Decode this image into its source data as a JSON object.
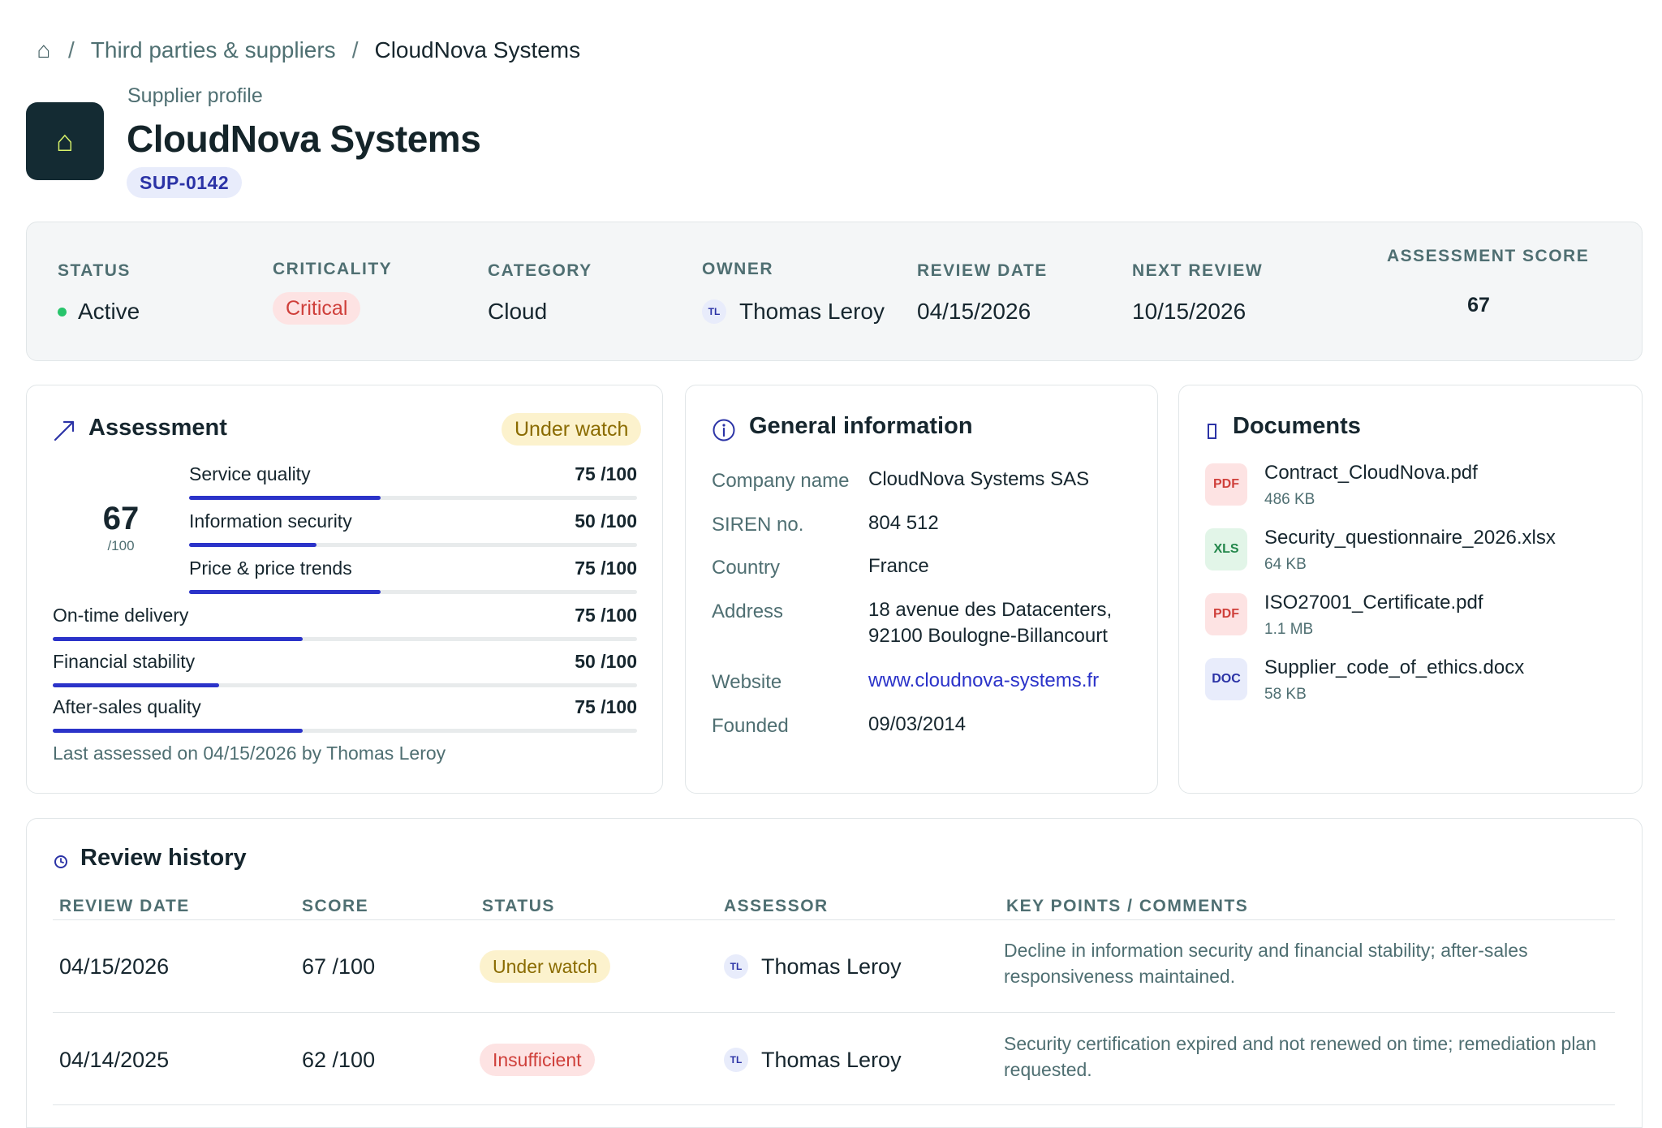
{
  "breadcrumb": {
    "home_icon": "home-icon",
    "separator": "/",
    "parent": "Third parties & suppliers",
    "current": "CloudNova Systems"
  },
  "header": {
    "logo_icon": "home-icon",
    "eyebrow": "Supplier profile",
    "title": "CloudNova Systems",
    "supplier_id": "SUP-0142"
  },
  "summary": {
    "status": {
      "label": "STATUS",
      "value": "Active",
      "dot_color": "#27c46b"
    },
    "criticality": {
      "label": "CRITICALITY",
      "value": "Critical"
    },
    "category": {
      "label": "CATEGORY",
      "value": "Cloud"
    },
    "owner": {
      "label": "OWNER",
      "initials": "TL",
      "value": "Thomas Leroy"
    },
    "review_date": {
      "label": "REVIEW DATE",
      "value": "04/15/2026"
    },
    "next_review": {
      "label": "NEXT REVIEW",
      "value": "10/15/2026"
    },
    "assessment_score": {
      "label": "ASSESSMENT SCORE",
      "value": "67"
    }
  },
  "assessment": {
    "title": "Assessment",
    "icon": "trend-up-icon",
    "badge": "Under watch",
    "score": "67",
    "score_max": "/100",
    "criteria": [
      {
        "label": "Service quality",
        "score": "75 /100",
        "value": 75
      },
      {
        "label": "Information security",
        "score": "50 /100",
        "value": 50
      },
      {
        "label": "Price & price trends",
        "score": "75 /100",
        "value": 75
      },
      {
        "label": "On-time delivery",
        "score": "75 /100",
        "value": 75
      },
      {
        "label": "Financial stability",
        "score": "50 /100",
        "value": 50
      },
      {
        "label": "After-sales quality",
        "score": "75 /100",
        "value": 75
      }
    ],
    "footer": "Last assessed on 04/15/2026 by Thomas Leroy"
  },
  "general": {
    "title": "General information",
    "icon": "info-icon",
    "rows": [
      {
        "label": "Company name",
        "value": "CloudNova Systems SAS"
      },
      {
        "label": "SIREN no.",
        "value": "804 512"
      },
      {
        "label": "Country",
        "value": "France"
      },
      {
        "label": "Address",
        "value": "18 avenue des Datacenters,",
        "value2": "92100 Boulogne-Billancourt"
      },
      {
        "label": "Website",
        "value": "www.cloudnova-systems.fr"
      },
      {
        "label": "Founded",
        "value": "09/03/2014"
      }
    ]
  },
  "documents": {
    "title": "Documents",
    "icon": "document-icon",
    "items": [
      {
        "type": "PDF",
        "name": "Contract_CloudNova.pdf",
        "size": "486 KB"
      },
      {
        "type": "XLS",
        "name": "Security_questionnaire_2026.xlsx",
        "size": "64 KB"
      },
      {
        "type": "PDF",
        "name": "ISO27001_Certificate.pdf",
        "size": "1.1 MB"
      },
      {
        "type": "DOC",
        "name": "Supplier_code_of_ethics.docx",
        "size": "58 KB"
      }
    ]
  },
  "history": {
    "title": "Review history",
    "icon": "clock-icon",
    "columns": [
      "REVIEW DATE",
      "SCORE",
      "STATUS",
      "ASSESSOR",
      "KEY POINTS / COMMENTS"
    ],
    "rows": [
      {
        "date": "04/15/2026",
        "score": "67 /100",
        "status": "Under watch",
        "initials": "TL",
        "assessor": "Thomas Leroy",
        "comment": "Decline in information security and financial stability; after-sales responsiveness maintained."
      },
      {
        "date": "04/14/2025",
        "score": "62 /100",
        "status": "Insufficient",
        "initials": "TL",
        "assessor": "Thomas Leroy",
        "comment": "Security certification expired and not renewed on time; remediation plan requested."
      }
    ]
  }
}
